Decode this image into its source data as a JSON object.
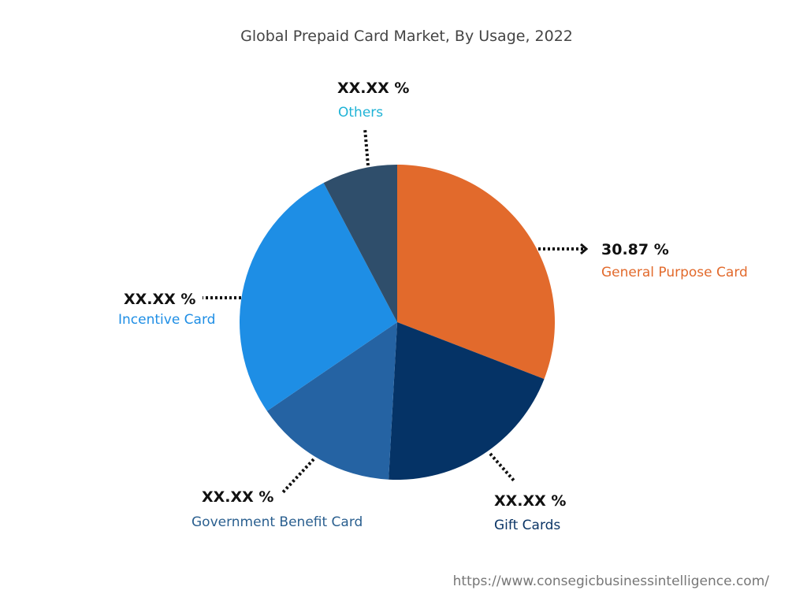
{
  "chart_data": {
    "type": "pie",
    "title": "Global Prepaid Card Market, By Usage, 2022",
    "start": "top",
    "direction": "clockwise",
    "slices": [
      {
        "label": "General Purpose Card",
        "value": 30.87,
        "value_label": "30.87 %",
        "color": "#E26A2C",
        "label_color": "#E26A2C"
      },
      {
        "label": "Gift Cards",
        "value": 20.0,
        "value_label": "XX.XX %",
        "color": "#053366",
        "label_color": "#0B3566"
      },
      {
        "label": "Government Benefit Card",
        "value": 14.6,
        "value_label": "XX.XX %",
        "color": "#2563A3",
        "label_color": "#2A5F8F"
      },
      {
        "label": "Incentive Card",
        "value": 26.8,
        "value_label": "XX.XX %",
        "color": "#1E8EE5",
        "label_color": "#1E8EE5"
      },
      {
        "label": "Others",
        "value": 7.73,
        "value_label": "XX.XX %",
        "color": "#2F4E6B",
        "label_color": "#1FB3D6"
      }
    ]
  },
  "footer": {
    "url": "https://www.consegicbusinessintelligence.com/"
  }
}
